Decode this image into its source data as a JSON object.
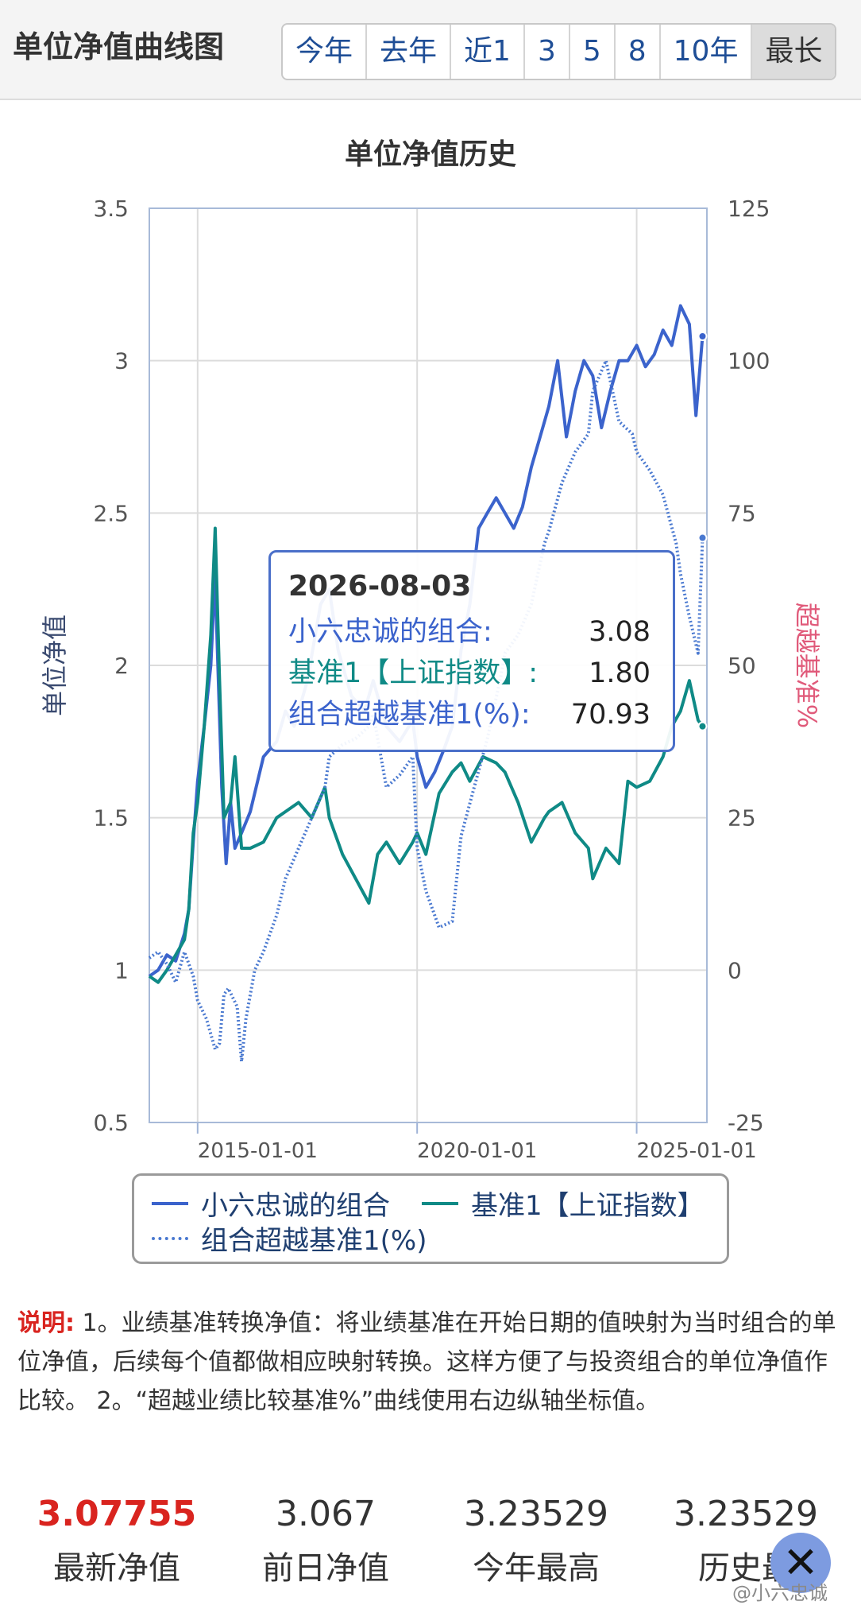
{
  "header": {
    "title": "单位净值曲线图",
    "ranges": [
      {
        "label": "今年",
        "active": false
      },
      {
        "label": "去年",
        "active": false
      },
      {
        "label": "近1",
        "active": false
      },
      {
        "label": "3",
        "active": false
      },
      {
        "label": "5",
        "active": false
      },
      {
        "label": "8",
        "active": false
      },
      {
        "label": "10年",
        "active": false
      },
      {
        "label": "最长",
        "active": true
      }
    ]
  },
  "chart_data": {
    "type": "line",
    "title": "单位净值历史",
    "ylabel_left": "单位净值",
    "ylabel_right": "超越基准%",
    "x_ticks": [
      "2015-01-01",
      "2020-01-01",
      "2025-01-01"
    ],
    "x_tick_dates": [
      2015.0,
      2020.0,
      2025.0
    ],
    "x_range": [
      2013.9,
      2026.6
    ],
    "y_left_ticks": [
      "3.5",
      "3",
      "2.5",
      "2",
      "1.5",
      "1",
      "0.5"
    ],
    "y_left_range": [
      0.5,
      3.5
    ],
    "y_right_ticks": [
      "125",
      "100",
      "75",
      "50",
      "25",
      "0",
      "-25"
    ],
    "y_right_range": [
      -25,
      125
    ],
    "grid": true,
    "legend_position": "bottom",
    "colors": {
      "portfolio": "#3b63cc",
      "benchmark": "#0f8a86",
      "excess": "#4a79d0",
      "right_axis_label": "#e05a7a"
    },
    "series": [
      {
        "name": "小六忠诚的组合",
        "axis": "left",
        "style": "solid",
        "points": [
          [
            2013.9,
            0.98
          ],
          [
            2014.1,
            1.0
          ],
          [
            2014.3,
            1.05
          ],
          [
            2014.5,
            1.03
          ],
          [
            2014.7,
            1.12
          ],
          [
            2014.8,
            1.2
          ],
          [
            2014.9,
            1.42
          ],
          [
            2015.0,
            1.62
          ],
          [
            2015.15,
            1.8
          ],
          [
            2015.3,
            2.0
          ],
          [
            2015.4,
            2.3
          ],
          [
            2015.45,
            2.05
          ],
          [
            2015.55,
            1.6
          ],
          [
            2015.65,
            1.35
          ],
          [
            2015.75,
            1.55
          ],
          [
            2015.85,
            1.4
          ],
          [
            2016.0,
            1.45
          ],
          [
            2016.2,
            1.52
          ],
          [
            2016.5,
            1.7
          ],
          [
            2016.8,
            1.75
          ],
          [
            2017.0,
            1.85
          ],
          [
            2017.2,
            1.8
          ],
          [
            2017.5,
            1.95
          ],
          [
            2017.8,
            2.2
          ],
          [
            2018.0,
            2.25
          ],
          [
            2018.2,
            2.05
          ],
          [
            2018.5,
            1.9
          ],
          [
            2018.8,
            1.85
          ],
          [
            2019.0,
            1.95
          ],
          [
            2019.3,
            1.8
          ],
          [
            2019.6,
            1.75
          ],
          [
            2019.9,
            1.82
          ],
          [
            2020.0,
            1.7
          ],
          [
            2020.2,
            1.6
          ],
          [
            2020.4,
            1.65
          ],
          [
            2020.6,
            1.72
          ],
          [
            2020.8,
            1.8
          ],
          [
            2021.0,
            2.05
          ],
          [
            2021.2,
            2.2
          ],
          [
            2021.4,
            2.45
          ],
          [
            2021.6,
            2.5
          ],
          [
            2021.8,
            2.55
          ],
          [
            2022.0,
            2.5
          ],
          [
            2022.2,
            2.45
          ],
          [
            2022.4,
            2.52
          ],
          [
            2022.6,
            2.65
          ],
          [
            2022.8,
            2.75
          ],
          [
            2023.0,
            2.85
          ],
          [
            2023.2,
            3.0
          ],
          [
            2023.4,
            2.75
          ],
          [
            2023.6,
            2.9
          ],
          [
            2023.8,
            3.0
          ],
          [
            2024.0,
            2.95
          ],
          [
            2024.2,
            2.78
          ],
          [
            2024.4,
            2.9
          ],
          [
            2024.6,
            3.0
          ],
          [
            2024.8,
            3.0
          ],
          [
            2025.0,
            3.05
          ],
          [
            2025.2,
            2.98
          ],
          [
            2025.4,
            3.02
          ],
          [
            2025.6,
            3.1
          ],
          [
            2025.8,
            3.05
          ],
          [
            2026.0,
            3.18
          ],
          [
            2026.2,
            3.12
          ],
          [
            2026.35,
            2.82
          ],
          [
            2026.5,
            3.08
          ]
        ]
      },
      {
        "name": "基准1【上证指数】",
        "axis": "left",
        "style": "solid",
        "points": [
          [
            2013.9,
            0.98
          ],
          [
            2014.1,
            0.96
          ],
          [
            2014.3,
            1.0
          ],
          [
            2014.5,
            1.05
          ],
          [
            2014.7,
            1.1
          ],
          [
            2014.8,
            1.2
          ],
          [
            2014.9,
            1.45
          ],
          [
            2015.0,
            1.55
          ],
          [
            2015.15,
            1.8
          ],
          [
            2015.3,
            2.1
          ],
          [
            2015.4,
            2.45
          ],
          [
            2015.5,
            1.95
          ],
          [
            2015.6,
            1.5
          ],
          [
            2015.75,
            1.55
          ],
          [
            2015.85,
            1.7
          ],
          [
            2016.0,
            1.4
          ],
          [
            2016.2,
            1.4
          ],
          [
            2016.5,
            1.42
          ],
          [
            2016.8,
            1.5
          ],
          [
            2017.0,
            1.52
          ],
          [
            2017.3,
            1.55
          ],
          [
            2017.6,
            1.5
          ],
          [
            2017.9,
            1.6
          ],
          [
            2018.0,
            1.5
          ],
          [
            2018.3,
            1.38
          ],
          [
            2018.6,
            1.3
          ],
          [
            2018.9,
            1.22
          ],
          [
            2019.1,
            1.38
          ],
          [
            2019.3,
            1.42
          ],
          [
            2019.6,
            1.35
          ],
          [
            2019.9,
            1.42
          ],
          [
            2020.0,
            1.45
          ],
          [
            2020.2,
            1.38
          ],
          [
            2020.5,
            1.58
          ],
          [
            2020.8,
            1.65
          ],
          [
            2021.0,
            1.68
          ],
          [
            2021.2,
            1.62
          ],
          [
            2021.5,
            1.7
          ],
          [
            2021.8,
            1.68
          ],
          [
            2022.0,
            1.65
          ],
          [
            2022.3,
            1.55
          ],
          [
            2022.6,
            1.42
          ],
          [
            2022.9,
            1.5
          ],
          [
            2023.0,
            1.52
          ],
          [
            2023.3,
            1.55
          ],
          [
            2023.6,
            1.45
          ],
          [
            2023.9,
            1.4
          ],
          [
            2024.0,
            1.3
          ],
          [
            2024.3,
            1.4
          ],
          [
            2024.6,
            1.35
          ],
          [
            2024.8,
            1.62
          ],
          [
            2025.0,
            1.6
          ],
          [
            2025.3,
            1.62
          ],
          [
            2025.6,
            1.7
          ],
          [
            2025.8,
            1.8
          ],
          [
            2026.0,
            1.85
          ],
          [
            2026.2,
            1.95
          ],
          [
            2026.4,
            1.82
          ],
          [
            2026.5,
            1.8
          ]
        ]
      },
      {
        "name": "组合超越基准1(%)",
        "axis": "right",
        "style": "dotted",
        "points": [
          [
            2013.9,
            2
          ],
          [
            2014.1,
            3
          ],
          [
            2014.3,
            1
          ],
          [
            2014.5,
            -2
          ],
          [
            2014.7,
            3
          ],
          [
            2014.9,
            -1
          ],
          [
            2015.0,
            -5
          ],
          [
            2015.2,
            -8
          ],
          [
            2015.4,
            -13
          ],
          [
            2015.5,
            -12
          ],
          [
            2015.6,
            -4
          ],
          [
            2015.7,
            -3
          ],
          [
            2015.9,
            -6
          ],
          [
            2016.0,
            -15
          ],
          [
            2016.1,
            -8
          ],
          [
            2016.3,
            0
          ],
          [
            2016.5,
            3
          ],
          [
            2016.8,
            9
          ],
          [
            2017.0,
            15
          ],
          [
            2017.3,
            20
          ],
          [
            2017.6,
            25
          ],
          [
            2017.9,
            30
          ],
          [
            2018.0,
            35
          ],
          [
            2018.3,
            37
          ],
          [
            2018.6,
            38
          ],
          [
            2018.9,
            40
          ],
          [
            2019.0,
            42
          ],
          [
            2019.3,
            30
          ],
          [
            2019.6,
            32
          ],
          [
            2019.9,
            35
          ],
          [
            2020.0,
            20
          ],
          [
            2020.2,
            13
          ],
          [
            2020.5,
            7
          ],
          [
            2020.8,
            8
          ],
          [
            2021.0,
            22
          ],
          [
            2021.3,
            30
          ],
          [
            2021.6,
            38
          ],
          [
            2021.9,
            48
          ],
          [
            2022.0,
            52
          ],
          [
            2022.3,
            55
          ],
          [
            2022.6,
            60
          ],
          [
            2022.9,
            70
          ],
          [
            2023.0,
            72
          ],
          [
            2023.3,
            80
          ],
          [
            2023.6,
            85
          ],
          [
            2023.9,
            88
          ],
          [
            2024.0,
            95
          ],
          [
            2024.3,
            100
          ],
          [
            2024.6,
            90
          ],
          [
            2024.9,
            88
          ],
          [
            2025.0,
            85
          ],
          [
            2025.3,
            82
          ],
          [
            2025.6,
            78
          ],
          [
            2025.9,
            70
          ],
          [
            2026.0,
            65
          ],
          [
            2026.2,
            58
          ],
          [
            2026.4,
            52
          ],
          [
            2026.5,
            70.93
          ]
        ]
      }
    ],
    "tooltip": {
      "date": "2026-08-03",
      "rows": [
        {
          "label": "小六忠诚的组合:",
          "value": "3.08",
          "color": "#3b63cc"
        },
        {
          "label": "基准1【上证指数】:",
          "value": "1.80",
          "color": "#0f8a86"
        },
        {
          "label": "组合超越基准1(%):",
          "value": "70.93",
          "color": "#3b63cc"
        }
      ]
    }
  },
  "note": {
    "label": "说明:",
    "text": " 1。业绩基准转换净值：将业绩基准在开始日期的值映射为当时组合的单位净值，后续每个值都做相应映射转换。这样方便了与投资组合的单位净值作比较。 2。“超越业绩比较基准%”曲线使用右边纵轴坐标值。"
  },
  "stats": [
    {
      "value": "3.07755",
      "label": "最新净值",
      "highlight": true
    },
    {
      "value": "3.067",
      "label": "前日净值",
      "highlight": false
    },
    {
      "value": "3.23529",
      "label": "今年最高",
      "highlight": false
    },
    {
      "value": "3.23529",
      "label": "历史最",
      "highlight": false
    }
  ],
  "close_icon": "close-icon",
  "watermark": "@小六忠诚"
}
